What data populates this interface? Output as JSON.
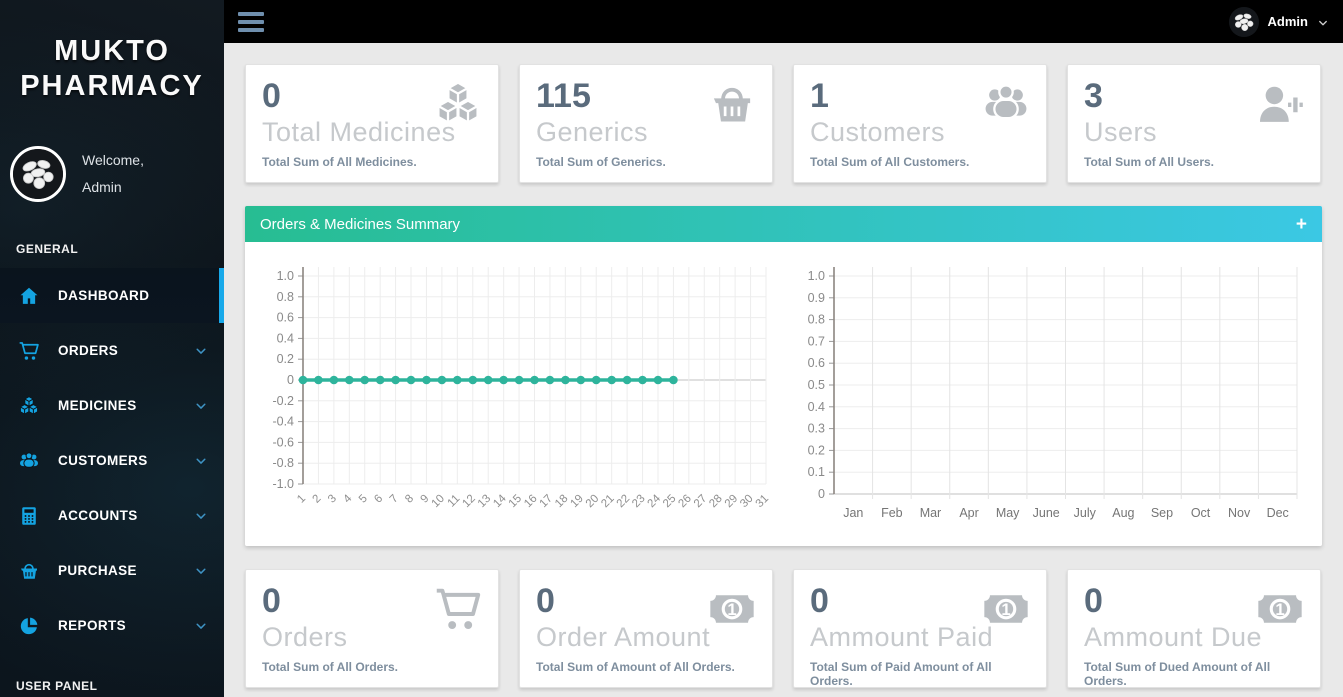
{
  "colors": {
    "accent_blue": "#18a9ea",
    "icon_blue": "#14a3e1",
    "teal_line": "#2eb49c",
    "header_gradient_left": "#27bd92",
    "header_gradient_right": "#3bc8e4",
    "stat_number": "#5a6b7c",
    "card_icon_gray": "#b9bdc1"
  },
  "sidebar": {
    "brand": {
      "line1": "MUKTO",
      "line2": "PHARMACY"
    },
    "welcome": {
      "line1": "Welcome,",
      "line2": "Admin",
      "avatar_icon": "pills-avatar"
    },
    "sections": [
      {
        "label": "GENERAL",
        "items": [
          {
            "label": "DASHBOARD",
            "icon": "home-icon",
            "active": true,
            "has_submenu": false
          },
          {
            "label": "ORDERS",
            "icon": "cart-icon",
            "active": false,
            "has_submenu": true
          },
          {
            "label": "MEDICINES",
            "icon": "cubes-icon",
            "active": false,
            "has_submenu": true
          },
          {
            "label": "CUSTOMERS",
            "icon": "users-icon",
            "active": false,
            "has_submenu": true
          },
          {
            "label": "ACCOUNTS",
            "icon": "calculator-icon",
            "active": false,
            "has_submenu": true
          },
          {
            "label": "PURCHASE",
            "icon": "basket-icon",
            "active": false,
            "has_submenu": true
          },
          {
            "label": "REPORTS",
            "icon": "pie-chart-icon",
            "active": false,
            "has_submenu": true
          }
        ]
      },
      {
        "label": "USER PANEL",
        "items": []
      }
    ]
  },
  "topbar": {
    "menu_icon": "hamburger-icon",
    "user": {
      "name": "Admin",
      "avatar_icon": "pills-avatar",
      "chevron_icon": "chevron-down-icon"
    }
  },
  "stats": {
    "top": [
      {
        "value": "0",
        "label": "Total Medicines",
        "description": "Total Sum of All Medicines.",
        "icon": "cubes-icon"
      },
      {
        "value": "115",
        "label": "Generics",
        "description": "Total Sum of Generics.",
        "icon": "basket-icon"
      },
      {
        "value": "1",
        "label": "Customers",
        "description": "Total Sum of All Customers.",
        "icon": "users-icon"
      },
      {
        "value": "3",
        "label": "Users",
        "description": "Total Sum of All Users.",
        "icon": "user-plus-icon"
      }
    ],
    "bottom": [
      {
        "value": "0",
        "label": "Orders",
        "description": "Total Sum of All Orders.",
        "icon": "cart-icon"
      },
      {
        "value": "0",
        "label": "Order Amount",
        "description": "Total Sum of Amount of All Orders.",
        "icon": "money-bill-icon"
      },
      {
        "value": "0",
        "label": "Ammount Paid",
        "description": "Total Sum of Paid Amount of All Orders.",
        "icon": "money-bill-icon"
      },
      {
        "value": "0",
        "label": "Ammount Due",
        "description": "Total Sum of Dued Amount of All Orders.",
        "icon": "money-bill-icon"
      }
    ]
  },
  "panel": {
    "title": "Orders & Medicines Summary",
    "expand_label": "+"
  },
  "chart_data": [
    {
      "type": "line",
      "title": "",
      "xlabel": "",
      "ylabel": "",
      "x_mode": "point",
      "x_rotate": true,
      "x_labels": [
        "1",
        "2",
        "3",
        "4",
        "5",
        "6",
        "7",
        "8",
        "9",
        "10",
        "11",
        "12",
        "13",
        "14",
        "15",
        "16",
        "17",
        "18",
        "19",
        "20",
        "21",
        "22",
        "23",
        "24",
        "25",
        "26",
        "27",
        "28",
        "29",
        "30",
        "31"
      ],
      "ylim": [
        -1.0,
        1.0
      ],
      "y_step": 0.2,
      "grid": true,
      "legend": "none",
      "line_color": "#2eb49c",
      "series": [
        {
          "name": "daily-orders",
          "x": [
            1,
            2,
            3,
            4,
            5,
            6,
            7,
            8,
            9,
            10,
            11,
            12,
            13,
            14,
            15,
            16,
            17,
            18,
            19,
            20,
            21,
            22,
            23,
            24,
            25
          ],
          "y": [
            0,
            0,
            0,
            0,
            0,
            0,
            0,
            0,
            0,
            0,
            0,
            0,
            0,
            0,
            0,
            0,
            0,
            0,
            0,
            0,
            0,
            0,
            0,
            0,
            0
          ]
        }
      ]
    },
    {
      "type": "line",
      "title": "",
      "xlabel": "",
      "ylabel": "",
      "x_mode": "band",
      "x_rotate": false,
      "x_labels": [
        "Jan",
        "Feb",
        "Mar",
        "Apr",
        "May",
        "June",
        "July",
        "Aug",
        "Sep",
        "Oct",
        "Nov",
        "Dec"
      ],
      "ylim": [
        0.0,
        1.0
      ],
      "y_step": 0.1,
      "grid": true,
      "legend": "none",
      "line_color": "#2eb49c",
      "series": []
    }
  ]
}
